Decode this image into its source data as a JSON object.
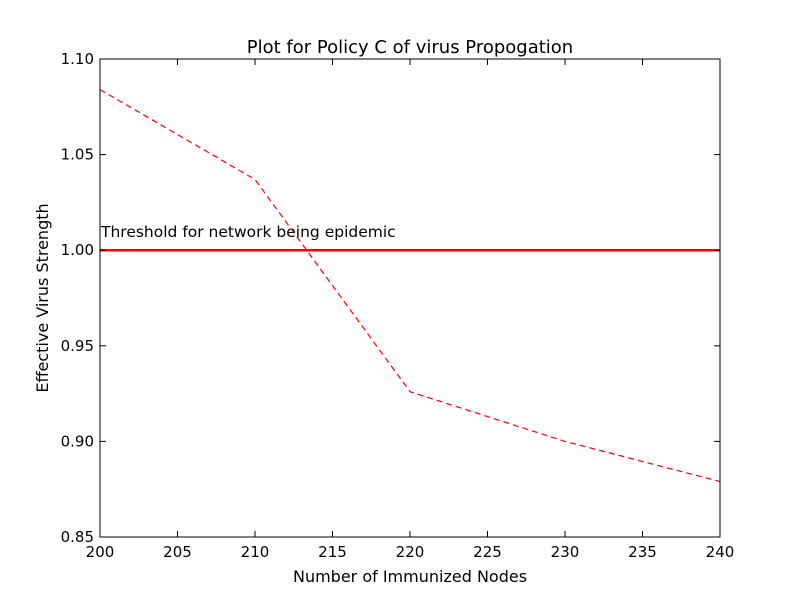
{
  "chart_data": {
    "type": "line",
    "title": "Plot for Policy C of virus Propogation",
    "xlabel": "Number of Immunized Nodes",
    "ylabel": "Effective Virus Strength",
    "xlim": [
      200,
      240
    ],
    "ylim": [
      0.85,
      1.1
    ],
    "x_ticks": [
      200,
      205,
      210,
      215,
      220,
      225,
      230,
      235,
      240
    ],
    "x_tick_labels": [
      "200",
      "205",
      "210",
      "215",
      "220",
      "225",
      "230",
      "235",
      "240"
    ],
    "y_ticks": [
      0.85,
      0.9,
      0.95,
      1.0,
      1.05,
      1.1
    ],
    "y_tick_labels": [
      "0.85",
      "0.90",
      "0.95",
      "1.00",
      "1.05",
      "1.10"
    ],
    "grid": false,
    "series": [
      {
        "style": "dashed",
        "color": "#ff0000",
        "x": [
          200,
          210,
          220,
          230,
          240
        ],
        "y": [
          1.084,
          1.037,
          0.926,
          0.9,
          0.879
        ]
      }
    ],
    "threshold": {
      "y": 1.0,
      "color": "#ff0000",
      "label": "Threshold for network being epidemic",
      "label_x": 200,
      "label_y": 1.01
    }
  }
}
